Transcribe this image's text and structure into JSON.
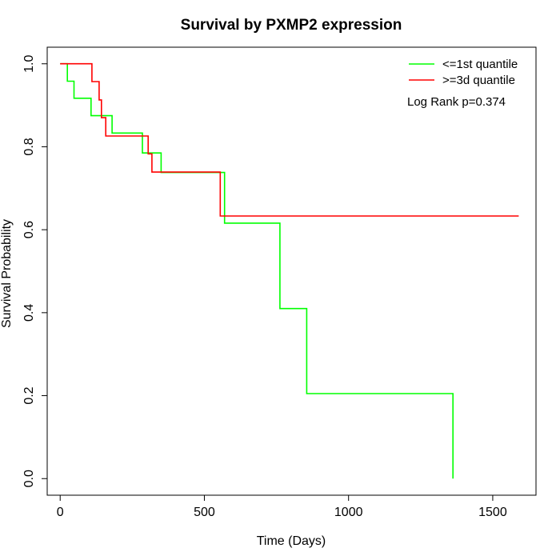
{
  "chart_data": {
    "type": "line",
    "subtype": "kaplan-meier-step",
    "title": "Survival by PXMP2 expression",
    "xlabel": "Time (Days)",
    "ylabel": "Survival Probability",
    "xlim": [
      -45,
      1650
    ],
    "ylim": [
      -0.04,
      1.04
    ],
    "x_ticks": [
      0,
      500,
      1000,
      1500
    ],
    "x_tick_labels": [
      "0",
      "500",
      "1000",
      "1500"
    ],
    "y_ticks": [
      0.0,
      0.2,
      0.4,
      0.6,
      0.8,
      1.0
    ],
    "y_tick_labels": [
      "0.0",
      "0.2",
      "0.4",
      "0.6",
      "0.8",
      "1.0"
    ],
    "grid": false,
    "legend_position": "top-right",
    "annotation": "Log Rank p=0.374",
    "series": [
      {
        "name": "<=1st quantile",
        "color": "#00ff00",
        "x": [
          0,
          25,
          25,
          48,
          48,
          107,
          107,
          180,
          180,
          285,
          285,
          350,
          350,
          570,
          570,
          762,
          762,
          855,
          855,
          1362,
          1362
        ],
        "y": [
          1.0,
          1.0,
          0.958,
          0.958,
          0.917,
          0.917,
          0.875,
          0.875,
          0.833,
          0.833,
          0.785,
          0.785,
          0.738,
          0.738,
          0.616,
          0.616,
          0.41,
          0.41,
          0.205,
          0.205,
          0.0
        ]
      },
      {
        "name": ">=3d quantile",
        "color": "#ff0000",
        "x": [
          0,
          110,
          110,
          135,
          135,
          143,
          143,
          158,
          158,
          305,
          305,
          318,
          318,
          555,
          555,
          1590
        ],
        "y": [
          1.0,
          1.0,
          0.957,
          0.957,
          0.913,
          0.913,
          0.87,
          0.87,
          0.826,
          0.826,
          0.783,
          0.783,
          0.739,
          0.739,
          0.633,
          0.633
        ]
      }
    ]
  }
}
